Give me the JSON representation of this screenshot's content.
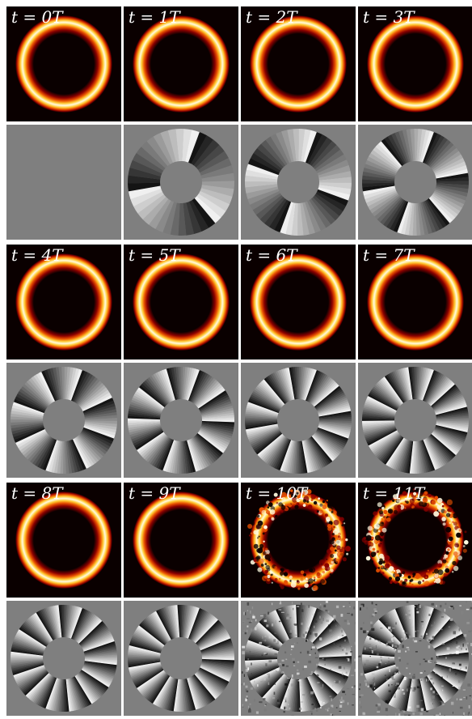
{
  "figure": {
    "groups": [
      {
        "frames": [
          {
            "label": "t = 0T",
            "vortices": 0,
            "turbulent": false
          },
          {
            "label": "t = 1T",
            "vortices": 3,
            "turbulent": false
          },
          {
            "label": "t = 2T",
            "vortices": 4,
            "turbulent": false
          },
          {
            "label": "t = 3T",
            "vortices": 6,
            "turbulent": false
          }
        ]
      },
      {
        "frames": [
          {
            "label": "t = 4T",
            "vortices": 8,
            "turbulent": false
          },
          {
            "label": "t = 5T",
            "vortices": 10,
            "turbulent": false
          },
          {
            "label": "t = 6T",
            "vortices": 12,
            "turbulent": false
          },
          {
            "label": "t = 7T",
            "vortices": 13,
            "turbulent": false
          }
        ]
      },
      {
        "frames": [
          {
            "label": "t = 8T",
            "vortices": 14,
            "turbulent": false
          },
          {
            "label": "t = 9T",
            "vortices": 15,
            "turbulent": false
          },
          {
            "label": "t = 10T",
            "vortices": 16,
            "turbulent": true
          },
          {
            "label": "t = 11T",
            "vortices": 17,
            "turbulent": true
          }
        ]
      }
    ],
    "colors": {
      "density_background": "#0a0000",
      "phase_background": "#7f7f7f",
      "ring_core": "#fffbe0",
      "ring_mid": "#ffc830",
      "ring_outer": "#e85000",
      "ring_edge": "#8a0000"
    }
  }
}
